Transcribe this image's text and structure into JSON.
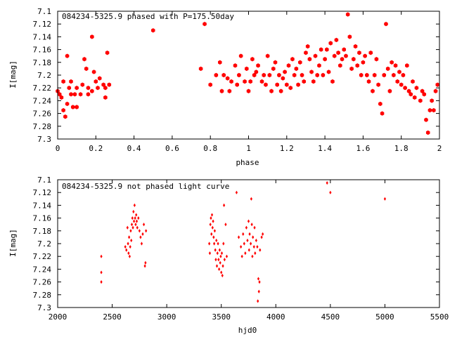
{
  "colors": {
    "points": "#ff0000",
    "axes": "#000000",
    "background": "#ffffff"
  },
  "chart_data": [
    {
      "type": "scatter",
      "title": "084234-5325.9 phased with P=175.50day",
      "xlabel": "phase",
      "ylabel": "I[mag]",
      "xlim": [
        0,
        2
      ],
      "ylim": [
        7.3,
        7.1
      ],
      "y_inverted": true,
      "grid": false,
      "x_ticks": [
        "0",
        "0.2",
        "0.4",
        "0.6",
        "0.8",
        "1",
        "1.2",
        "1.4",
        "1.6",
        "1.8",
        "2"
      ],
      "y_ticks": [
        "7.1",
        "7.12",
        "7.14",
        "7.16",
        "7.18",
        "7.2",
        "7.22",
        "7.24",
        "7.26",
        "7.28",
        "7.3"
      ],
      "marker": "hexagon",
      "points": [
        [
          0.0,
          7.225
        ],
        [
          0.01,
          7.23
        ],
        [
          0.02,
          7.235
        ],
        [
          0.03,
          7.21
        ],
        [
          0.03,
          7.255
        ],
        [
          0.04,
          7.265
        ],
        [
          0.05,
          7.245
        ],
        [
          0.06,
          7.22
        ],
        [
          0.07,
          7.21
        ],
        [
          0.07,
          7.23
        ],
        [
          0.05,
          7.17
        ],
        [
          0.08,
          7.25
        ],
        [
          0.09,
          7.23
        ],
        [
          0.1,
          7.22
        ],
        [
          0.1,
          7.25
        ],
        [
          0.12,
          7.23
        ],
        [
          0.13,
          7.215
        ],
        [
          0.14,
          7.175
        ],
        [
          0.15,
          7.19
        ],
        [
          0.16,
          7.22
        ],
        [
          0.16,
          7.23
        ],
        [
          0.18,
          7.14
        ],
        [
          0.18,
          7.225
        ],
        [
          0.19,
          7.195
        ],
        [
          0.2,
          7.21
        ],
        [
          0.21,
          7.22
        ],
        [
          0.22,
          7.205
        ],
        [
          0.24,
          7.215
        ],
        [
          0.25,
          7.22
        ],
        [
          0.25,
          7.235
        ],
        [
          0.26,
          7.165
        ],
        [
          0.27,
          7.215
        ],
        [
          0.5,
          7.13
        ],
        [
          0.75,
          7.19
        ],
        [
          0.77,
          7.12
        ],
        [
          0.8,
          7.215
        ],
        [
          0.83,
          7.2
        ],
        [
          0.85,
          7.18
        ],
        [
          0.86,
          7.225
        ],
        [
          0.87,
          7.2
        ],
        [
          0.89,
          7.205
        ],
        [
          0.9,
          7.225
        ],
        [
          0.91,
          7.21
        ],
        [
          0.93,
          7.185
        ],
        [
          0.94,
          7.215
        ],
        [
          0.95,
          7.2
        ],
        [
          0.96,
          7.17
        ],
        [
          0.98,
          7.21
        ],
        [
          0.99,
          7.19
        ],
        [
          1.0,
          7.225
        ],
        [
          1.01,
          7.21
        ],
        [
          1.02,
          7.175
        ],
        [
          1.03,
          7.2
        ],
        [
          1.04,
          7.195
        ],
        [
          1.05,
          7.185
        ],
        [
          1.07,
          7.21
        ],
        [
          1.08,
          7.2
        ],
        [
          1.09,
          7.215
        ],
        [
          1.1,
          7.17
        ],
        [
          1.11,
          7.2
        ],
        [
          1.12,
          7.225
        ],
        [
          1.13,
          7.19
        ],
        [
          1.14,
          7.18
        ],
        [
          1.15,
          7.215
        ],
        [
          1.16,
          7.2
        ],
        [
          1.17,
          7.225
        ],
        [
          1.18,
          7.205
        ],
        [
          1.19,
          7.195
        ],
        [
          1.2,
          7.215
        ],
        [
          1.21,
          7.185
        ],
        [
          1.22,
          7.22
        ],
        [
          1.23,
          7.175
        ],
        [
          1.24,
          7.2
        ],
        [
          1.25,
          7.19
        ],
        [
          1.26,
          7.215
        ],
        [
          1.27,
          7.18
        ],
        [
          1.28,
          7.2
        ],
        [
          1.29,
          7.21
        ],
        [
          1.3,
          7.165
        ],
        [
          1.31,
          7.155
        ],
        [
          1.32,
          7.175
        ],
        [
          1.33,
          7.195
        ],
        [
          1.34,
          7.21
        ],
        [
          1.35,
          7.17
        ],
        [
          1.36,
          7.2
        ],
        [
          1.37,
          7.185
        ],
        [
          1.38,
          7.16
        ],
        [
          1.39,
          7.2
        ],
        [
          1.4,
          7.175
        ],
        [
          1.41,
          7.16
        ],
        [
          1.42,
          7.195
        ],
        [
          1.43,
          7.15
        ],
        [
          1.44,
          7.21
        ],
        [
          1.45,
          7.17
        ],
        [
          1.46,
          7.145
        ],
        [
          1.47,
          7.165
        ],
        [
          1.48,
          7.185
        ],
        [
          1.49,
          7.175
        ],
        [
          1.5,
          7.16
        ],
        [
          1.51,
          7.17
        ],
        [
          1.52,
          7.105
        ],
        [
          1.53,
          7.14
        ],
        [
          1.54,
          7.19
        ],
        [
          1.55,
          7.175
        ],
        [
          1.56,
          7.155
        ],
        [
          1.57,
          7.185
        ],
        [
          1.58,
          7.165
        ],
        [
          1.59,
          7.2
        ],
        [
          1.6,
          7.18
        ],
        [
          1.61,
          7.17
        ],
        [
          1.62,
          7.2
        ],
        [
          1.63,
          7.21
        ],
        [
          1.64,
          7.165
        ],
        [
          1.65,
          7.225
        ],
        [
          1.66,
          7.2
        ],
        [
          1.67,
          7.175
        ],
        [
          1.68,
          7.215
        ],
        [
          1.69,
          7.245
        ],
        [
          1.7,
          7.26
        ],
        [
          1.71,
          7.2
        ],
        [
          1.72,
          7.12
        ],
        [
          1.73,
          7.19
        ],
        [
          1.74,
          7.225
        ],
        [
          1.75,
          7.18
        ],
        [
          1.76,
          7.2
        ],
        [
          1.77,
          7.185
        ],
        [
          1.78,
          7.21
        ],
        [
          1.79,
          7.195
        ],
        [
          1.8,
          7.215
        ],
        [
          1.81,
          7.2
        ],
        [
          1.82,
          7.22
        ],
        [
          1.83,
          7.185
        ],
        [
          1.84,
          7.225
        ],
        [
          1.85,
          7.23
        ],
        [
          1.86,
          7.21
        ],
        [
          1.87,
          7.235
        ],
        [
          1.88,
          7.22
        ],
        [
          1.9,
          7.24
        ],
        [
          1.91,
          7.225
        ],
        [
          1.92,
          7.23
        ],
        [
          1.93,
          7.27
        ],
        [
          1.94,
          7.29
        ],
        [
          1.95,
          7.255
        ],
        [
          1.96,
          7.24
        ],
        [
          1.97,
          7.255
        ],
        [
          1.98,
          7.225
        ],
        [
          1.99,
          7.215
        ]
      ]
    },
    {
      "type": "scatter",
      "title": "084234-5325.9 not phased light curve",
      "xlabel": "hjd0",
      "ylabel": "I[mag]",
      "xlim": [
        2000,
        5500
      ],
      "ylim": [
        7.3,
        7.1
      ],
      "y_inverted": true,
      "grid": false,
      "x_ticks": [
        "2000",
        "2500",
        "3000",
        "3500",
        "4000",
        "4500",
        "5000",
        "5500"
      ],
      "y_ticks": [
        "7.1",
        "7.12",
        "7.14",
        "7.16",
        "7.18",
        "7.2",
        "7.22",
        "7.24",
        "7.26",
        "7.28",
        "7.3"
      ],
      "marker": "diamond",
      "points": [
        [
          2400,
          7.22
        ],
        [
          2400,
          7.245
        ],
        [
          2400,
          7.26
        ],
        [
          2620,
          7.205
        ],
        [
          2630,
          7.21
        ],
        [
          2640,
          7.175
        ],
        [
          2645,
          7.2
        ],
        [
          2650,
          7.215
        ],
        [
          2655,
          7.19
        ],
        [
          2660,
          7.22
        ],
        [
          2665,
          7.205
        ],
        [
          2670,
          7.18
        ],
        [
          2675,
          7.195
        ],
        [
          2680,
          7.17
        ],
        [
          2685,
          7.16
        ],
        [
          2690,
          7.175
        ],
        [
          2695,
          7.15
        ],
        [
          2700,
          7.165
        ],
        [
          2705,
          7.14
        ],
        [
          2710,
          7.16
        ],
        [
          2715,
          7.17
        ],
        [
          2720,
          7.155
        ],
        [
          2725,
          7.165
        ],
        [
          2730,
          7.175
        ],
        [
          2740,
          7.16
        ],
        [
          2750,
          7.18
        ],
        [
          2760,
          7.19
        ],
        [
          2770,
          7.2
        ],
        [
          2780,
          7.185
        ],
        [
          2790,
          7.17
        ],
        [
          2800,
          7.235
        ],
        [
          2805,
          7.23
        ],
        [
          2810,
          7.18
        ],
        [
          3390,
          7.2
        ],
        [
          3395,
          7.215
        ],
        [
          3400,
          7.17
        ],
        [
          3405,
          7.16
        ],
        [
          3410,
          7.185
        ],
        [
          3415,
          7.155
        ],
        [
          3420,
          7.175
        ],
        [
          3425,
          7.165
        ],
        [
          3430,
          7.19
        ],
        [
          3435,
          7.2
        ],
        [
          3440,
          7.18
        ],
        [
          3445,
          7.21
        ],
        [
          3450,
          7.225
        ],
        [
          3455,
          7.195
        ],
        [
          3460,
          7.235
        ],
        [
          3465,
          7.215
        ],
        [
          3470,
          7.2
        ],
        [
          3475,
          7.225
        ],
        [
          3480,
          7.24
        ],
        [
          3485,
          7.21
        ],
        [
          3490,
          7.23
        ],
        [
          3495,
          7.22
        ],
        [
          3500,
          7.245
        ],
        [
          3505,
          7.215
        ],
        [
          3510,
          7.25
        ],
        [
          3515,
          7.235
        ],
        [
          3520,
          7.2
        ],
        [
          3525,
          7.14
        ],
        [
          3530,
          7.225
        ],
        [
          3540,
          7.17
        ],
        [
          3550,
          7.22
        ],
        [
          3640,
          7.12
        ],
        [
          3660,
          7.19
        ],
        [
          3680,
          7.205
        ],
        [
          3690,
          7.22
        ],
        [
          3700,
          7.185
        ],
        [
          3710,
          7.2
        ],
        [
          3720,
          7.215
        ],
        [
          3730,
          7.175
        ],
        [
          3740,
          7.195
        ],
        [
          3750,
          7.165
        ],
        [
          3755,
          7.21
        ],
        [
          3760,
          7.185
        ],
        [
          3770,
          7.2
        ],
        [
          3775,
          7.13
        ],
        [
          3780,
          7.17
        ],
        [
          3785,
          7.22
        ],
        [
          3790,
          7.19
        ],
        [
          3800,
          7.205
        ],
        [
          3805,
          7.175
        ],
        [
          3810,
          7.215
        ],
        [
          3820,
          7.195
        ],
        [
          3830,
          7.205
        ],
        [
          3835,
          7.29
        ],
        [
          3840,
          7.255
        ],
        [
          3845,
          7.275
        ],
        [
          3850,
          7.26
        ],
        [
          3855,
          7.21
        ],
        [
          3870,
          7.19
        ],
        [
          3880,
          7.185
        ],
        [
          4470,
          7.105
        ],
        [
          4500,
          7.12
        ],
        [
          5000,
          7.13
        ]
      ]
    }
  ]
}
